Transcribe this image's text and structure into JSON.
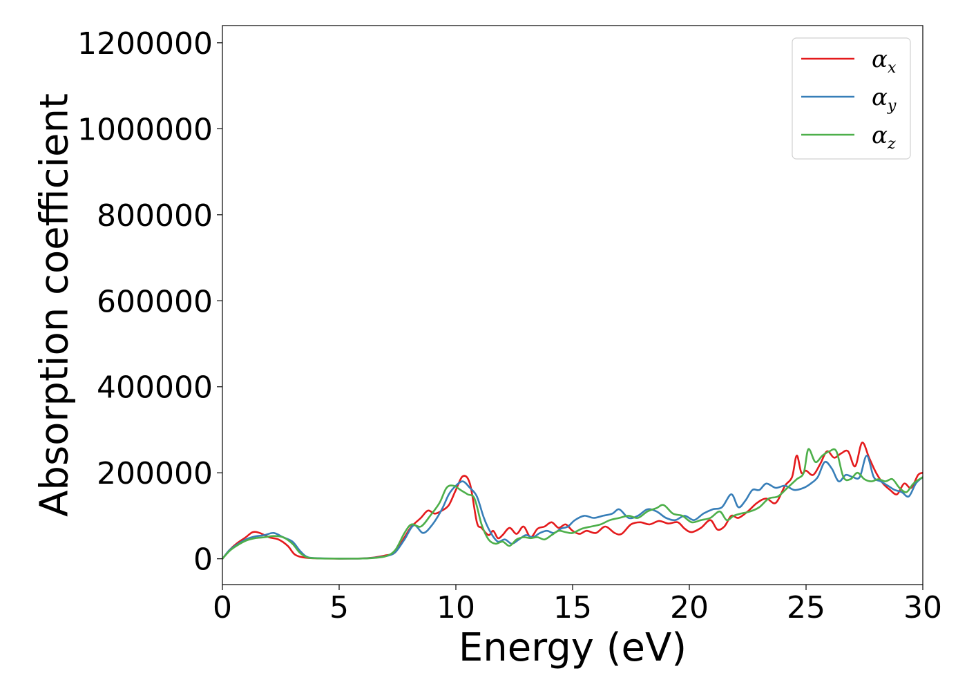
{
  "chart_data": {
    "type": "line",
    "xlabel": "Energy (eV)",
    "ylabel": "Absorption coefficient",
    "xlim": [
      0,
      30
    ],
    "ylim": [
      -60000,
      1240000
    ],
    "xticks": [
      0,
      5,
      10,
      15,
      20,
      25,
      30
    ],
    "yticks": [
      0,
      200000,
      400000,
      600000,
      800000,
      1000000,
      1200000
    ],
    "xtick_labels": [
      "0",
      "5",
      "10",
      "15",
      "20",
      "25",
      "30"
    ],
    "ytick_labels": [
      "0",
      "200000",
      "400000",
      "600000",
      "800000",
      "1000000",
      "1200000"
    ],
    "grid": false,
    "legend_position": "top-right",
    "series": [
      {
        "name": "αx",
        "legend_base": "α",
        "legend_sub": "x",
        "color": "#e41a1c",
        "x": [
          0,
          0.3,
          0.6,
          1.0,
          1.3,
          1.6,
          2.0,
          2.4,
          2.8,
          3.1,
          3.5,
          4.0,
          5.0,
          6.0,
          6.5,
          7.0,
          7.4,
          7.8,
          8.1,
          8.5,
          8.8,
          9.1,
          9.4,
          9.7,
          10.0,
          10.3,
          10.6,
          10.9,
          11.1,
          11.4,
          11.6,
          11.8,
          12.0,
          12.3,
          12.6,
          12.9,
          13.2,
          13.5,
          13.8,
          14.1,
          14.4,
          14.7,
          15.0,
          15.3,
          15.6,
          16.0,
          16.4,
          16.8,
          17.1,
          17.5,
          17.9,
          18.3,
          18.7,
          19.1,
          19.5,
          19.8,
          20.1,
          20.5,
          20.9,
          21.2,
          21.5,
          21.8,
          22.1,
          22.5,
          22.9,
          23.3,
          23.7,
          24.1,
          24.4,
          24.6,
          24.8,
          25.0,
          25.3,
          25.6,
          25.9,
          26.2,
          26.5,
          26.8,
          27.1,
          27.4,
          27.7,
          28.0,
          28.3,
          28.6,
          28.9,
          29.2,
          29.5,
          29.8,
          30.0
        ],
        "y": [
          0,
          20000,
          35000,
          50000,
          62000,
          60000,
          50000,
          45000,
          30000,
          10000,
          3000,
          1000,
          500,
          800,
          3000,
          8000,
          15000,
          50000,
          75000,
          95000,
          112000,
          105000,
          112000,
          125000,
          160000,
          192000,
          175000,
          85000,
          72000,
          55000,
          65000,
          48000,
          55000,
          72000,
          58000,
          75000,
          50000,
          70000,
          75000,
          85000,
          72000,
          80000,
          65000,
          58000,
          65000,
          60000,
          75000,
          60000,
          58000,
          80000,
          85000,
          80000,
          88000,
          82000,
          85000,
          70000,
          62000,
          72000,
          90000,
          68000,
          75000,
          100000,
          95000,
          110000,
          130000,
          140000,
          130000,
          170000,
          190000,
          240000,
          200000,
          205000,
          195000,
          220000,
          250000,
          235000,
          245000,
          250000,
          215000,
          270000,
          235000,
          200000,
          175000,
          160000,
          150000,
          175000,
          165000,
          195000,
          200000
        ]
      },
      {
        "name": "αy",
        "legend_base": "α",
        "legend_sub": "y",
        "color": "#377eb8",
        "x": [
          0,
          0.3,
          0.6,
          1.0,
          1.4,
          1.8,
          2.2,
          2.6,
          3.0,
          3.3,
          3.6,
          4.0,
          5.0,
          6.0,
          6.5,
          7.0,
          7.4,
          7.8,
          8.2,
          8.6,
          9.0,
          9.4,
          9.7,
          10.0,
          10.3,
          10.6,
          10.9,
          11.2,
          11.5,
          11.8,
          12.1,
          12.4,
          12.7,
          13.0,
          13.3,
          13.6,
          13.9,
          14.2,
          14.5,
          14.8,
          15.1,
          15.5,
          15.9,
          16.3,
          16.7,
          17.0,
          17.4,
          17.8,
          18.2,
          18.6,
          19.0,
          19.4,
          19.8,
          20.2,
          20.6,
          21.0,
          21.4,
          21.8,
          22.1,
          22.4,
          22.7,
          23.0,
          23.3,
          23.7,
          24.1,
          24.5,
          24.9,
          25.2,
          25.5,
          25.8,
          26.1,
          26.4,
          26.7,
          27.0,
          27.3,
          27.6,
          27.9,
          28.2,
          28.5,
          28.8,
          29.1,
          29.4,
          29.7,
          30.0
        ],
        "y": [
          0,
          20000,
          32000,
          45000,
          52000,
          55000,
          60000,
          50000,
          40000,
          20000,
          5000,
          1500,
          600,
          800,
          2500,
          6000,
          15000,
          45000,
          78000,
          60000,
          80000,
          115000,
          150000,
          170000,
          180000,
          165000,
          145000,
          95000,
          60000,
          40000,
          45000,
          35000,
          45000,
          55000,
          50000,
          60000,
          65000,
          60000,
          70000,
          75000,
          90000,
          100000,
          95000,
          100000,
          105000,
          115000,
          95000,
          100000,
          115000,
          110000,
          95000,
          90000,
          100000,
          90000,
          105000,
          115000,
          120000,
          150000,
          120000,
          135000,
          160000,
          160000,
          175000,
          165000,
          170000,
          160000,
          165000,
          175000,
          190000,
          225000,
          210000,
          180000,
          195000,
          190000,
          190000,
          240000,
          190000,
          180000,
          170000,
          160000,
          155000,
          145000,
          175000,
          190000
        ]
      },
      {
        "name": "αz",
        "legend_base": "α",
        "legend_sub": "z",
        "color": "#4daf4a",
        "x": [
          0,
          0.3,
          0.6,
          1.0,
          1.4,
          1.8,
          2.2,
          2.6,
          3.0,
          3.3,
          3.6,
          4.0,
          5.0,
          6.0,
          6.5,
          7.0,
          7.4,
          7.8,
          8.1,
          8.5,
          8.9,
          9.3,
          9.6,
          9.9,
          10.2,
          10.5,
          10.8,
          11.1,
          11.4,
          11.7,
          12.0,
          12.3,
          12.6,
          12.9,
          13.2,
          13.5,
          13.8,
          14.1,
          14.4,
          14.7,
          15.0,
          15.4,
          15.8,
          16.2,
          16.6,
          17.0,
          17.4,
          17.8,
          18.2,
          18.6,
          18.9,
          19.3,
          19.7,
          20.1,
          20.5,
          20.9,
          21.3,
          21.6,
          21.9,
          22.2,
          22.6,
          23.0,
          23.4,
          23.8,
          24.2,
          24.6,
          24.9,
          25.1,
          25.4,
          25.7,
          26.0,
          26.3,
          26.6,
          26.9,
          27.2,
          27.5,
          27.8,
          28.1,
          28.4,
          28.7,
          29.0,
          29.3,
          29.6,
          30.0
        ],
        "y": [
          0,
          18000,
          30000,
          42000,
          48000,
          50000,
          53000,
          50000,
          35000,
          15000,
          4000,
          1200,
          500,
          700,
          2000,
          6000,
          20000,
          60000,
          80000,
          75000,
          100000,
          130000,
          165000,
          170000,
          160000,
          150000,
          140000,
          80000,
          45000,
          35000,
          40000,
          30000,
          45000,
          50000,
          48000,
          50000,
          45000,
          55000,
          65000,
          62000,
          60000,
          70000,
          75000,
          80000,
          90000,
          95000,
          100000,
          95000,
          110000,
          118000,
          125000,
          105000,
          100000,
          85000,
          90000,
          95000,
          110000,
          90000,
          100000,
          105000,
          110000,
          120000,
          140000,
          145000,
          165000,
          185000,
          200000,
          255000,
          225000,
          240000,
          250000,
          250000,
          190000,
          185000,
          200000,
          185000,
          180000,
          185000,
          180000,
          185000,
          165000,
          155000,
          175000,
          190000
        ]
      }
    ]
  }
}
